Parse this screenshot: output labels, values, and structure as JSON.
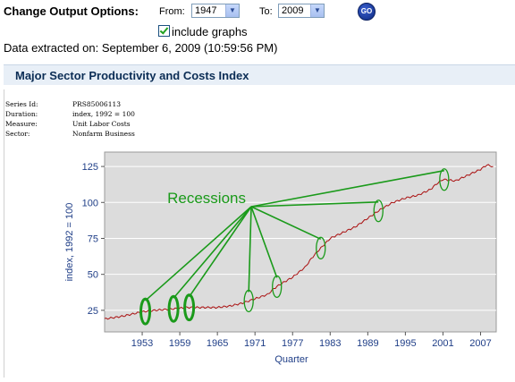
{
  "options": {
    "title": "Change Output Options:",
    "from_label": "From:",
    "from_value": "1947",
    "to_label": "To:",
    "to_value": "2009",
    "go_label": "GO",
    "include_graphs_label": "include graphs",
    "include_graphs_checked": true
  },
  "extracted": "Data extracted on: September 6, 2009 (10:59:56 PM)",
  "section_title": "Major Sector Productivity and Costs Index",
  "series_info": [
    {
      "key": "Series Id:",
      "value": "PRS85006113"
    },
    {
      "key": "Duration:",
      "value": "index, 1992 = 100"
    },
    {
      "key": "Measure:",
      "value": "Unit Labor Costs"
    },
    {
      "key": "Sector:",
      "value": "Nonfarm Business"
    }
  ],
  "colors": {
    "line": "#aa1111",
    "plot_bg": "#dcdcdc",
    "annotation": "#1a9a1a",
    "axis_text": "#1f3e87"
  },
  "annotation": {
    "label": "Recessions"
  },
  "chart_data": {
    "type": "line",
    "xlabel": "Quarter",
    "ylabel": "index, 1992 = 100",
    "xlim": [
      1947,
      2009.5
    ],
    "ylim": [
      10,
      135
    ],
    "xticks": [
      "1953",
      "1959",
      "1965",
      "1971",
      "1977",
      "1983",
      "1989",
      "1995",
      "2001",
      "2007"
    ],
    "yticks": [
      "25",
      "50",
      "75",
      "100",
      "125"
    ],
    "series": [
      {
        "x": [
          1947,
          1950,
          1953,
          1955,
          1958,
          1960,
          1962,
          1965,
          1967,
          1969,
          1971,
          1973,
          1974,
          1975,
          1977,
          1979,
          1980,
          1981,
          1983,
          1985,
          1987,
          1989,
          1991,
          1993,
          1995,
          1997,
          1999,
          2000,
          2001,
          2003,
          2005,
          2007,
          2008,
          2009
        ],
        "y": [
          19,
          21,
          24,
          25,
          26,
          27,
          27,
          27,
          28,
          30,
          33,
          36,
          40,
          43,
          48,
          55,
          61,
          66,
          75,
          79,
          83,
          89,
          95,
          100,
          103,
          105,
          109,
          113,
          116,
          115,
          119,
          123,
          126,
          125
        ]
      }
    ],
    "recessions": [
      1953.5,
      1958,
      1960.5,
      1970,
      1974.5,
      1981.5,
      1990.7,
      2001.2
    ]
  }
}
